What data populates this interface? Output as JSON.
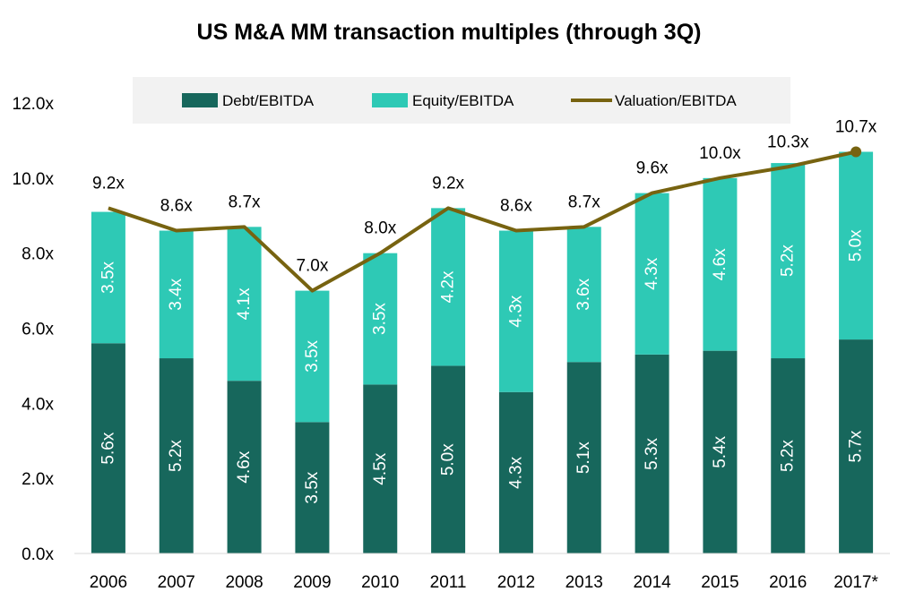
{
  "chart_data": {
    "type": "bar",
    "stacked": true,
    "title": "US M&A MM transaction multiples (through 3Q)",
    "xlabel": "",
    "ylabel": "",
    "ylim": [
      0,
      12
    ],
    "yticks": [
      "0.0x",
      "2.0x",
      "4.0x",
      "6.0x",
      "8.0x",
      "10.0x",
      "12.0x"
    ],
    "grid": false,
    "legend_position": "top",
    "categories": [
      "2006",
      "2007",
      "2008",
      "2009",
      "2010",
      "2011",
      "2012",
      "2013",
      "2014",
      "2015",
      "2016",
      "2017*"
    ],
    "series": [
      {
        "name": "Debt/EBITDA",
        "kind": "bar",
        "color": "#17675c",
        "values": [
          5.6,
          5.2,
          4.6,
          3.5,
          4.5,
          5.0,
          4.3,
          5.1,
          5.3,
          5.4,
          5.2,
          5.7
        ],
        "labels": [
          "5.6x",
          "5.2x",
          "4.6x",
          "3.5x",
          "4.5x",
          "5.0x",
          "4.3x",
          "5.1x",
          "5.3x",
          "5.4x",
          "5.2x",
          "5.7x"
        ]
      },
      {
        "name": "Equity/EBITDA",
        "kind": "bar",
        "color": "#2ec9b5",
        "values": [
          3.5,
          3.4,
          4.1,
          3.5,
          3.5,
          4.2,
          4.3,
          3.6,
          4.3,
          4.6,
          5.2,
          5.0
        ],
        "labels": [
          "3.5x",
          "3.4x",
          "4.1x",
          "3.5x",
          "3.5x",
          "4.2x",
          "4.3x",
          "3.6x",
          "4.3x",
          "4.6x",
          "5.2x",
          "5.0x"
        ]
      },
      {
        "name": "Valuation/EBITDA",
        "kind": "line",
        "color": "#776310",
        "values": [
          9.2,
          8.6,
          8.7,
          7.0,
          8.0,
          9.2,
          8.6,
          8.7,
          9.6,
          10.0,
          10.3,
          10.7
        ],
        "labels": [
          "9.2x",
          "8.6x",
          "8.7x",
          "7.0x",
          "8.0x",
          "9.2x",
          "8.6x",
          "8.7x",
          "9.6x",
          "10.0x",
          "10.3x",
          "10.7x"
        ]
      }
    ]
  }
}
